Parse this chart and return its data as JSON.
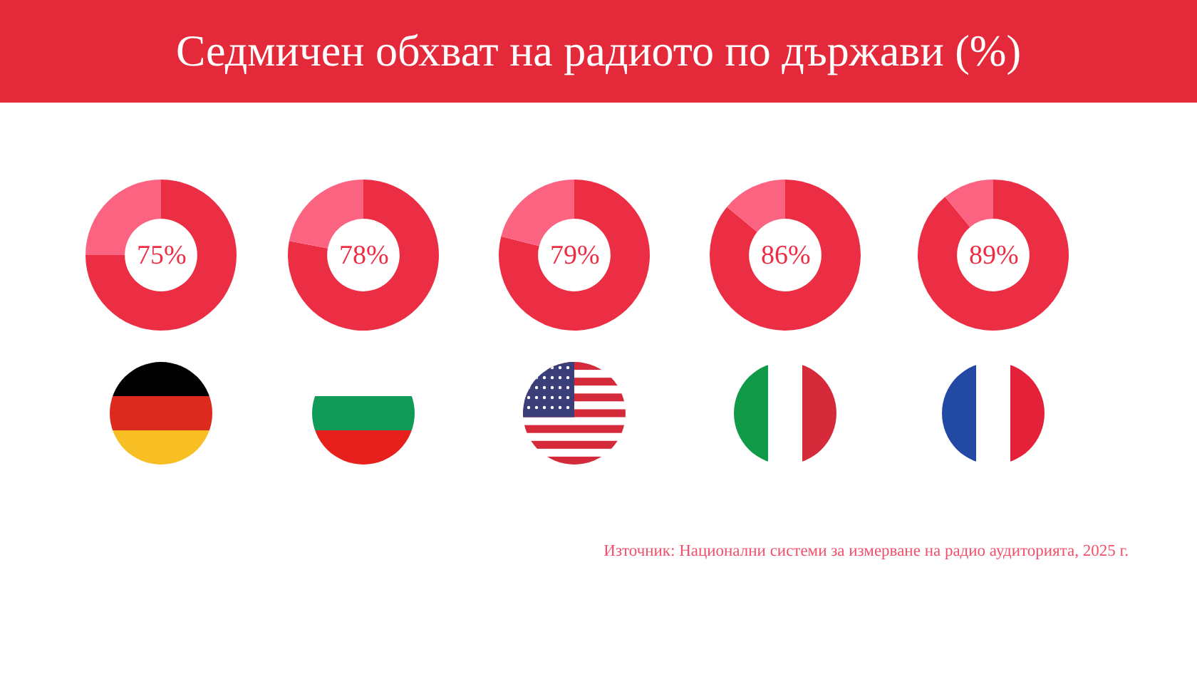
{
  "chart_data": [
    {
      "type": "donut",
      "title": "Седмичен обхват на радиото по държави (%)",
      "categories": [
        null,
        null
      ],
      "values": [
        75,
        25
      ],
      "colors": [
        "#ec2e44",
        "#fb6381"
      ],
      "value_labels": [
        "75%",
        null
      ]
    },
    {
      "type": "donut",
      "categories": [
        null,
        null
      ],
      "values": [
        78,
        22
      ],
      "colors": [
        "#ec2e44",
        "#fb6381"
      ],
      "value_labels": [
        "78%",
        null
      ]
    },
    {
      "type": "donut",
      "categories": [
        null,
        null
      ],
      "values": [
        79,
        21
      ],
      "colors": [
        "#ec2e44",
        "#fb6381"
      ],
      "value_labels": [
        "79%",
        null
      ]
    },
    {
      "type": "donut",
      "categories": [
        null,
        null
      ],
      "values": [
        86,
        14
      ],
      "colors": [
        "#ec2e44",
        "#fb6381"
      ],
      "value_labels": [
        "86%",
        null
      ]
    },
    {
      "type": "donut",
      "categories": [
        null,
        null
      ],
      "values": [
        89,
        11
      ],
      "colors": [
        "#ec2e44",
        "#fb6381"
      ],
      "value_labels": [
        "89%",
        null
      ]
    },
    {
      "type": "other",
      "annotations": [
        "Източник: Национални системи за измерване на радио аудиторията, 2025 г."
      ]
    }
  ]
}
